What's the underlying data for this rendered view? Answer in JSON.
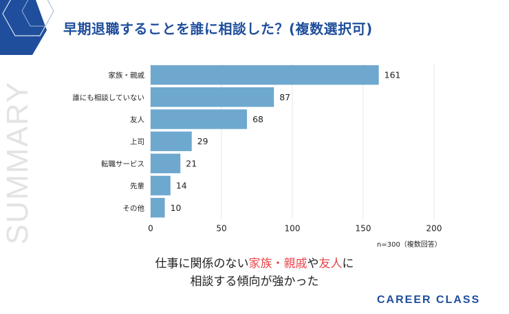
{
  "title": "早期退職することを誰に相談した？(複数選択可)",
  "side_watermark": "SUMMARY",
  "sample_note": "n=300（複数回答）",
  "conclusion": {
    "line1_pre": "仕事に関係のない",
    "highlight1": "家族・親戚",
    "line1_mid": "や",
    "highlight2": "友人",
    "line1_post": "に",
    "line2": "相談する傾向が強かった"
  },
  "brand": "CAREER CLASS",
  "colors": {
    "bar": "#6ea8cf",
    "title": "#1f4e9c",
    "highlight": "#e8474d",
    "grid": "#e6e6e6"
  },
  "chart_data": {
    "type": "bar",
    "orientation": "horizontal",
    "title": "早期退職することを誰に相談した？(複数選択可)",
    "categories": [
      "家族・親戚",
      "誰にも相談していない",
      "友人",
      "上司",
      "転職サービス",
      "先輩",
      "その他"
    ],
    "values": [
      161,
      87,
      68,
      29,
      21,
      14,
      10
    ],
    "xlim": [
      0,
      200
    ],
    "xticks": [
      0,
      50,
      100,
      150,
      200
    ],
    "grid": true,
    "xlabel": "",
    "ylabel": ""
  }
}
